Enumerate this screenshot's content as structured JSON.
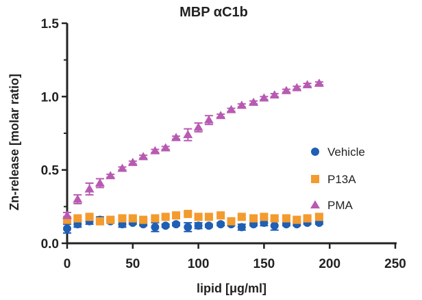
{
  "chart_data": {
    "type": "scatter",
    "title": "MBP αC1b",
    "xlabel": "lipid [μg/ml]",
    "ylabel": "Zn-release [molar ratio]",
    "xlim": [
      0,
      250
    ],
    "ylim": [
      0,
      1.5
    ],
    "xticks": [
      "0",
      "50",
      "100",
      "150",
      "200",
      "250"
    ],
    "yticks": [
      "0.0",
      "0.5",
      "1.0",
      "1.5"
    ],
    "grid": false,
    "legend_position": "right",
    "series": [
      {
        "name": "Vehicle",
        "marker": "circle",
        "color": "#1f5fb4",
        "x": [
          0,
          8,
          17,
          25,
          33,
          42,
          50,
          58,
          67,
          75,
          83,
          92,
          100,
          108,
          117,
          125,
          133,
          142,
          150,
          158,
          167,
          175,
          183,
          192
        ],
        "y": [
          0.1,
          0.13,
          0.15,
          0.16,
          0.15,
          0.13,
          0.14,
          0.13,
          0.11,
          0.12,
          0.13,
          0.11,
          0.12,
          0.12,
          0.13,
          0.13,
          0.11,
          0.13,
          0.14,
          0.12,
          0.13,
          0.13,
          0.14,
          0.14
        ],
        "error": [
          0.03,
          0.02,
          0.02,
          0.02,
          0.01,
          0.02,
          0.01,
          0.01,
          0.03,
          0.01,
          0.01,
          0.03,
          0.02,
          0.01,
          0.01,
          0.01,
          0.02,
          0.01,
          0.02,
          0.03,
          0.01,
          0.01,
          0.01,
          0.01
        ]
      },
      {
        "name": "P13A",
        "marker": "square",
        "color": "#f39b2e",
        "x": [
          0,
          8,
          17,
          25,
          33,
          42,
          50,
          58,
          67,
          75,
          83,
          92,
          100,
          108,
          117,
          125,
          133,
          142,
          150,
          158,
          167,
          175,
          183,
          192
        ],
        "y": [
          0.16,
          0.17,
          0.18,
          0.15,
          0.16,
          0.17,
          0.17,
          0.16,
          0.17,
          0.18,
          0.19,
          0.2,
          0.18,
          0.18,
          0.19,
          0.15,
          0.18,
          0.17,
          0.18,
          0.17,
          0.17,
          0.16,
          0.17,
          0.18
        ],
        "error": [
          0.01,
          0.01,
          0.01,
          0.01,
          0.01,
          0.01,
          0.01,
          0.01,
          0.01,
          0.01,
          0.01,
          0.01,
          0.01,
          0.01,
          0.01,
          0.01,
          0.01,
          0.01,
          0.01,
          0.01,
          0.01,
          0.01,
          0.01,
          0.01
        ]
      },
      {
        "name": "PMA",
        "marker": "triangle",
        "color": "#b75bb2",
        "x": [
          0,
          8,
          17,
          25,
          33,
          42,
          50,
          58,
          67,
          75,
          83,
          92,
          100,
          108,
          117,
          125,
          133,
          142,
          150,
          158,
          167,
          175,
          183,
          192
        ],
        "y": [
          0.19,
          0.3,
          0.37,
          0.41,
          0.46,
          0.51,
          0.55,
          0.59,
          0.63,
          0.65,
          0.72,
          0.74,
          0.79,
          0.84,
          0.87,
          0.91,
          0.94,
          0.96,
          0.99,
          1.01,
          1.04,
          1.06,
          1.08,
          1.09
        ],
        "error": [
          0.02,
          0.03,
          0.04,
          0.03,
          0.01,
          0.01,
          0.01,
          0.01,
          0.01,
          0.01,
          0.01,
          0.04,
          0.03,
          0.03,
          0.01,
          0.01,
          0.01,
          0.01,
          0.01,
          0.01,
          0.01,
          0.01,
          0.01,
          0.01
        ]
      }
    ]
  }
}
